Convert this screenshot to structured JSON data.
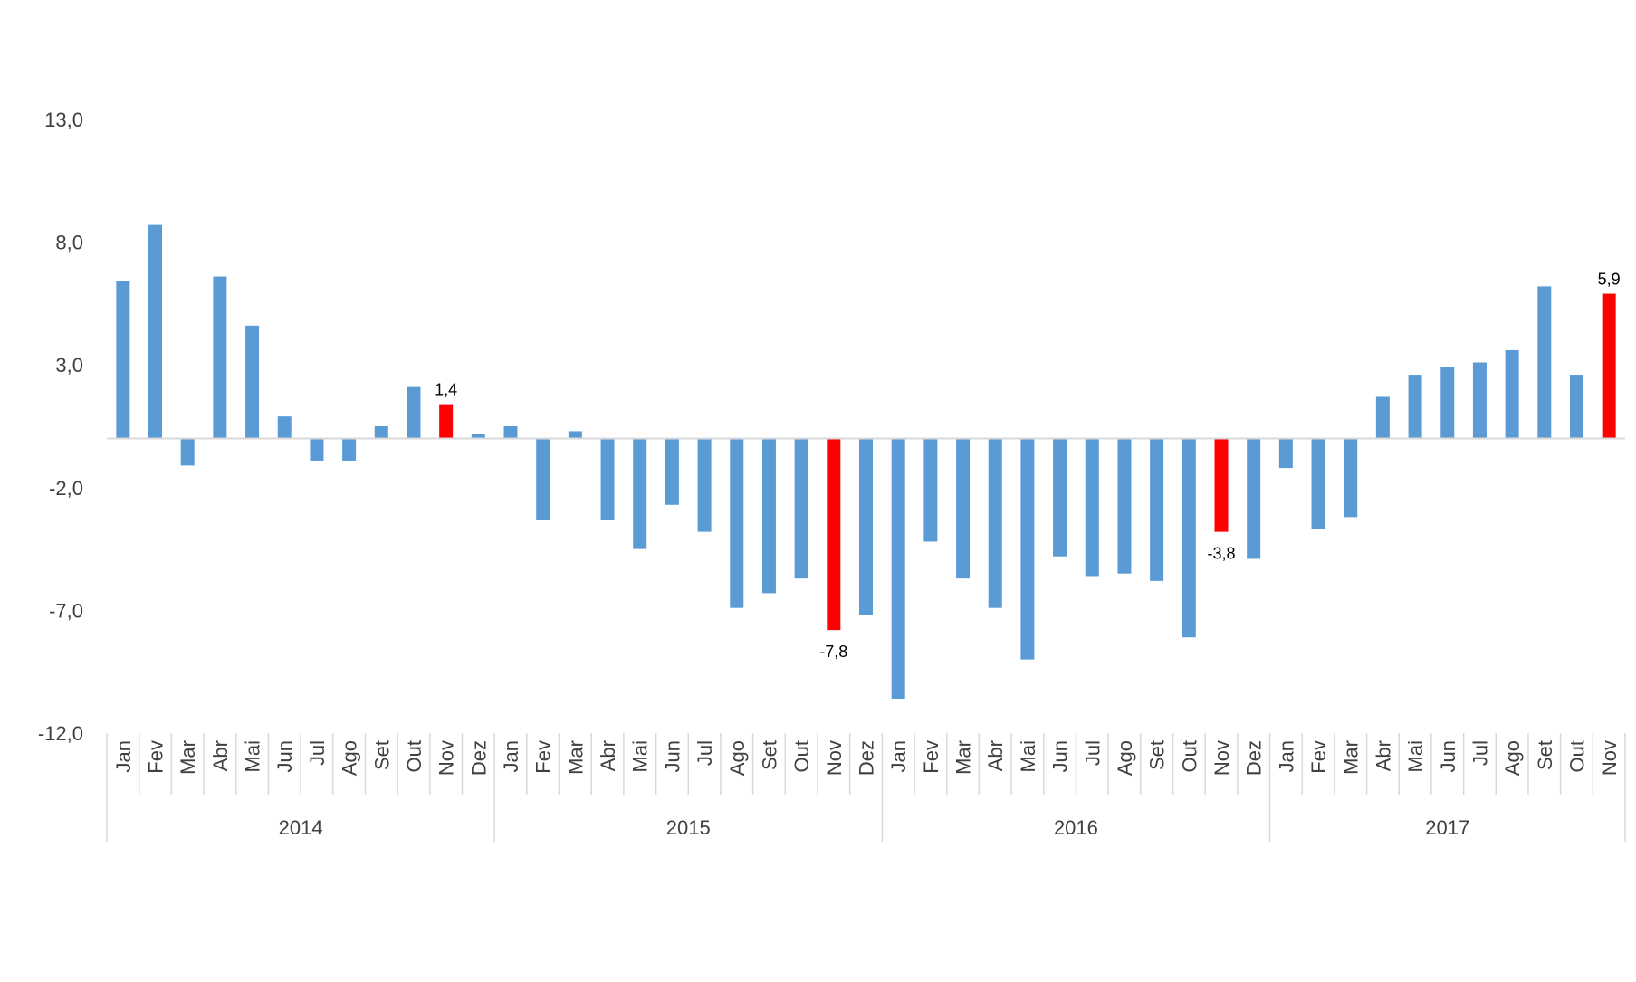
{
  "colors": {
    "bar": "#5B9BD5",
    "highlight": "#FF0000",
    "axis": "#D9D9D9",
    "text": "#404040"
  },
  "chart_data": {
    "type": "bar",
    "title": "",
    "xlabel": "",
    "ylabel": "",
    "ylim": [
      -12,
      13
    ],
    "yticks": [
      "13,0",
      "8,0",
      "3,0",
      "-2,0",
      "-7,0",
      "-12,0"
    ],
    "grid": false,
    "legend": "none",
    "groups": [
      {
        "year": "2014",
        "months": [
          "Jan",
          "Fev",
          "Mar",
          "Abr",
          "Mai",
          "Jun",
          "Jul",
          "Ago",
          "Set",
          "Out",
          "Nov",
          "Dez"
        ],
        "values": [
          6.4,
          8.7,
          -1.1,
          6.6,
          4.6,
          0.9,
          -0.9,
          -0.9,
          0.5,
          2.1,
          1.4,
          0.2
        ]
      },
      {
        "year": "2015",
        "months": [
          "Jan",
          "Fev",
          "Mar",
          "Abr",
          "Mai",
          "Jun",
          "Jul",
          "Ago",
          "Set",
          "Out",
          "Nov",
          "Dez"
        ],
        "values": [
          0.5,
          -3.3,
          0.3,
          -3.3,
          -4.5,
          -2.7,
          -3.8,
          -6.9,
          -6.3,
          -5.7,
          -7.8,
          -7.2
        ]
      },
      {
        "year": "2016",
        "months": [
          "Jan",
          "Fev",
          "Mar",
          "Abr",
          "Mai",
          "Jun",
          "Jul",
          "Ago",
          "Set",
          "Out",
          "Nov",
          "Dez"
        ],
        "values": [
          -10.6,
          -4.2,
          -5.7,
          -6.9,
          -9.0,
          -4.8,
          -5.6,
          -5.5,
          -5.8,
          -8.1,
          -3.8,
          -4.9
        ]
      },
      {
        "year": "2017",
        "months": [
          "Jan",
          "Fev",
          "Mar",
          "Abr",
          "Mai",
          "Jun",
          "Jul",
          "Ago",
          "Set",
          "Out",
          "Nov"
        ],
        "values": [
          -1.2,
          -3.7,
          -3.2,
          1.7,
          2.6,
          2.9,
          3.1,
          3.6,
          6.2,
          2.6,
          5.9
        ]
      }
    ],
    "highlighted": [
      {
        "year": "2014",
        "month": "Nov",
        "label": "1,4"
      },
      {
        "year": "2015",
        "month": "Nov",
        "label": "-7,8"
      },
      {
        "year": "2016",
        "month": "Nov",
        "label": "-3,8"
      },
      {
        "year": "2017",
        "month": "Nov",
        "label": "5,9"
      }
    ]
  }
}
